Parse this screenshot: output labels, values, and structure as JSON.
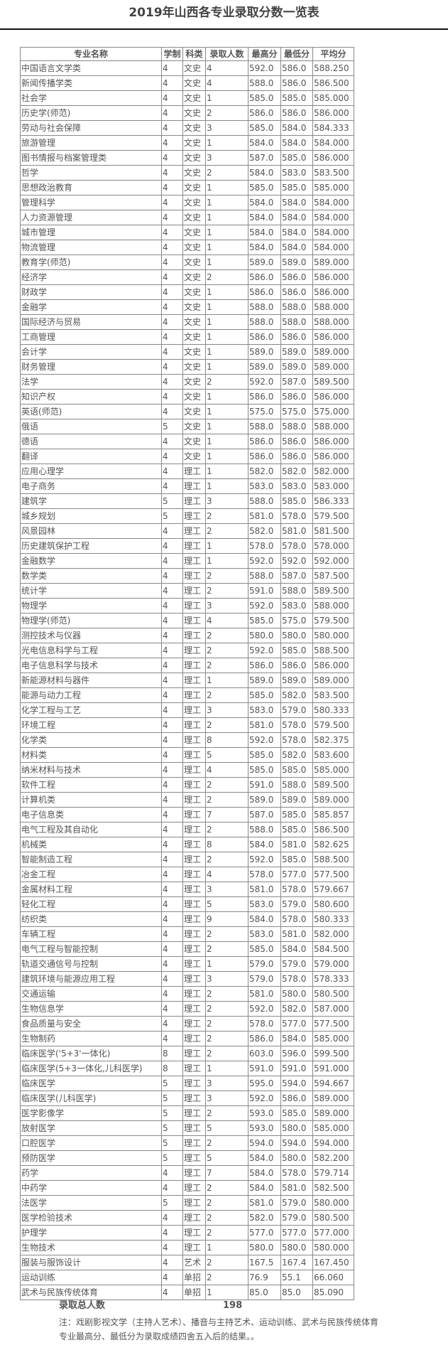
{
  "title": "2019年山西各专业录取分数一览表",
  "table": {
    "headers": [
      "专业名称",
      "学制",
      "科类",
      "录取人数",
      "最高分",
      "最低分",
      "平均分"
    ],
    "rows": [
      [
        "中国语言文学类",
        "4",
        "文史",
        "4",
        "592.0",
        "586.0",
        "588.250"
      ],
      [
        "新闻传播学类",
        "4",
        "文史",
        "4",
        "588.0",
        "586.0",
        "586.500"
      ],
      [
        "社会学",
        "4",
        "文史",
        "1",
        "585.0",
        "585.0",
        "585.000"
      ],
      [
        "历史学(师范)",
        "4",
        "文史",
        "2",
        "586.0",
        "586.0",
        "586.000"
      ],
      [
        "劳动与社会保障",
        "4",
        "文史",
        "3",
        "585.0",
        "584.0",
        "584.333"
      ],
      [
        "旅游管理",
        "4",
        "文史",
        "1",
        "584.0",
        "584.0",
        "584.000"
      ],
      [
        "图书情报与档案管理类",
        "4",
        "文史",
        "3",
        "587.0",
        "585.0",
        "586.000"
      ],
      [
        "哲学",
        "4",
        "文史",
        "2",
        "584.0",
        "583.0",
        "583.500"
      ],
      [
        "思想政治教育",
        "4",
        "文史",
        "1",
        "585.0",
        "585.0",
        "585.000"
      ],
      [
        "管理科学",
        "4",
        "文史",
        "1",
        "584.0",
        "584.0",
        "584.000"
      ],
      [
        "人力资源管理",
        "4",
        "文史",
        "1",
        "584.0",
        "584.0",
        "584.000"
      ],
      [
        "城市管理",
        "4",
        "文史",
        "1",
        "584.0",
        "584.0",
        "584.000"
      ],
      [
        "物流管理",
        "4",
        "文史",
        "1",
        "584.0",
        "584.0",
        "584.000"
      ],
      [
        "教育学(师范)",
        "4",
        "文史",
        "1",
        "589.0",
        "589.0",
        "589.000"
      ],
      [
        "经济学",
        "4",
        "文史",
        "2",
        "586.0",
        "586.0",
        "586.000"
      ],
      [
        "财政学",
        "4",
        "文史",
        "1",
        "586.0",
        "586.0",
        "586.000"
      ],
      [
        "金融学",
        "4",
        "文史",
        "1",
        "588.0",
        "588.0",
        "588.000"
      ],
      [
        "国际经济与贸易",
        "4",
        "文史",
        "1",
        "588.0",
        "588.0",
        "588.000"
      ],
      [
        "工商管理",
        "4",
        "文史",
        "1",
        "586.0",
        "586.0",
        "586.000"
      ],
      [
        "会计学",
        "4",
        "文史",
        "1",
        "589.0",
        "589.0",
        "589.000"
      ],
      [
        "财务管理",
        "4",
        "文史",
        "1",
        "589.0",
        "589.0",
        "589.000"
      ],
      [
        "法学",
        "4",
        "文史",
        "2",
        "592.0",
        "587.0",
        "589.500"
      ],
      [
        "知识产权",
        "4",
        "文史",
        "1",
        "586.0",
        "586.0",
        "586.000"
      ],
      [
        "英语(师范)",
        "4",
        "文史",
        "1",
        "575.0",
        "575.0",
        "575.000"
      ],
      [
        "俄语",
        "5",
        "文史",
        "1",
        "588.0",
        "588.0",
        "588.000"
      ],
      [
        "德语",
        "4",
        "文史",
        "1",
        "586.0",
        "586.0",
        "586.000"
      ],
      [
        "翻译",
        "4",
        "文史",
        "1",
        "586.0",
        "586.0",
        "586.000"
      ],
      [
        "应用心理学",
        "4",
        "理工",
        "1",
        "582.0",
        "582.0",
        "582.000"
      ],
      [
        "电子商务",
        "4",
        "理工",
        "1",
        "583.0",
        "583.0",
        "583.000"
      ],
      [
        "建筑学",
        "5",
        "理工",
        "3",
        "588.0",
        "585.0",
        "586.333"
      ],
      [
        "城乡规划",
        "5",
        "理工",
        "2",
        "581.0",
        "578.0",
        "579.500"
      ],
      [
        "风景园林",
        "4",
        "理工",
        "2",
        "582.0",
        "581.0",
        "581.500"
      ],
      [
        "历史建筑保护工程",
        "4",
        "理工",
        "1",
        "578.0",
        "578.0",
        "578.000"
      ],
      [
        "金融数学",
        "4",
        "理工",
        "1",
        "592.0",
        "592.0",
        "592.000"
      ],
      [
        "数学类",
        "4",
        "理工",
        "2",
        "588.0",
        "587.0",
        "587.500"
      ],
      [
        "统计学",
        "4",
        "理工",
        "2",
        "591.0",
        "588.0",
        "589.500"
      ],
      [
        "物理学",
        "4",
        "理工",
        "3",
        "592.0",
        "583.0",
        "588.000"
      ],
      [
        "物理学(师范)",
        "4",
        "理工",
        "4",
        "585.0",
        "575.0",
        "579.500"
      ],
      [
        "测控技术与仪器",
        "4",
        "理工",
        "2",
        "580.0",
        "580.0",
        "580.000"
      ],
      [
        "光电信息科学与工程",
        "4",
        "理工",
        "2",
        "592.0",
        "585.0",
        "588.500"
      ],
      [
        "电子信息科学与技术",
        "4",
        "理工",
        "2",
        "586.0",
        "586.0",
        "586.000"
      ],
      [
        "新能源材料与器件",
        "4",
        "理工",
        "1",
        "589.0",
        "589.0",
        "589.000"
      ],
      [
        "能源与动力工程",
        "4",
        "理工",
        "2",
        "585.0",
        "582.0",
        "583.500"
      ],
      [
        "化学工程与工艺",
        "4",
        "理工",
        "3",
        "583.0",
        "579.0",
        "580.333"
      ],
      [
        "环境工程",
        "4",
        "理工",
        "2",
        "581.0",
        "578.0",
        "579.500"
      ],
      [
        "化学类",
        "4",
        "理工",
        "8",
        "592.0",
        "578.0",
        "582.375"
      ],
      [
        "材料类",
        "4",
        "理工",
        "5",
        "585.0",
        "582.0",
        "583.600"
      ],
      [
        "纳米材料与技术",
        "4",
        "理工",
        "4",
        "585.0",
        "585.0",
        "585.000"
      ],
      [
        "软件工程",
        "4",
        "理工",
        "2",
        "591.0",
        "588.0",
        "589.500"
      ],
      [
        "计算机类",
        "4",
        "理工",
        "2",
        "589.0",
        "589.0",
        "589.000"
      ],
      [
        "电子信息类",
        "4",
        "理工",
        "7",
        "587.0",
        "585.0",
        "585.857"
      ],
      [
        "电气工程及其自动化",
        "4",
        "理工",
        "2",
        "588.0",
        "585.0",
        "586.500"
      ],
      [
        "机械类",
        "4",
        "理工",
        "8",
        "584.0",
        "581.0",
        "582.625"
      ],
      [
        "智能制造工程",
        "4",
        "理工",
        "2",
        "592.0",
        "585.0",
        "588.500"
      ],
      [
        "冶金工程",
        "4",
        "理工",
        "4",
        "578.0",
        "577.0",
        "577.500"
      ],
      [
        "金属材料工程",
        "4",
        "理工",
        "3",
        "581.0",
        "578.0",
        "579.667"
      ],
      [
        "轻化工程",
        "4",
        "理工",
        "5",
        "583.0",
        "579.0",
        "580.600"
      ],
      [
        "纺织类",
        "4",
        "理工",
        "9",
        "584.0",
        "578.0",
        "580.333"
      ],
      [
        "车辆工程",
        "4",
        "理工",
        "2",
        "583.0",
        "581.0",
        "582.000"
      ],
      [
        "电气工程与智能控制",
        "4",
        "理工",
        "2",
        "585.0",
        "584.0",
        "584.500"
      ],
      [
        "轨道交通信号与控制",
        "4",
        "理工",
        "1",
        "579.0",
        "579.0",
        "579.000"
      ],
      [
        "建筑环境与能源应用工程",
        "4",
        "理工",
        "3",
        "579.0",
        "578.0",
        "578.333"
      ],
      [
        "交通运输",
        "4",
        "理工",
        "2",
        "581.0",
        "580.0",
        "580.500"
      ],
      [
        "生物信息学",
        "4",
        "理工",
        "2",
        "592.0",
        "582.0",
        "587.000"
      ],
      [
        "食品质量与安全",
        "4",
        "理工",
        "2",
        "578.0",
        "577.0",
        "577.500"
      ],
      [
        "生物制药",
        "4",
        "理工",
        "2",
        "586.0",
        "584.0",
        "585.000"
      ],
      [
        "临床医学('5+3'一体化)",
        "8",
        "理工",
        "2",
        "603.0",
        "596.0",
        "599.500"
      ],
      [
        "临床医学(5+3一体化,儿科医学)",
        "8",
        "理工",
        "1",
        "591.0",
        "591.0",
        "591.000"
      ],
      [
        "临床医学",
        "5",
        "理工",
        "3",
        "595.0",
        "594.0",
        "594.667"
      ],
      [
        "临床医学(儿科医学)",
        "5",
        "理工",
        "3",
        "592.0",
        "586.0",
        "589.000"
      ],
      [
        "医学影像学",
        "5",
        "理工",
        "2",
        "593.0",
        "585.0",
        "589.000"
      ],
      [
        "放射医学",
        "5",
        "理工",
        "5",
        "593.0",
        "580.0",
        "585.000"
      ],
      [
        "口腔医学",
        "5",
        "理工",
        "2",
        "594.0",
        "594.0",
        "594.000"
      ],
      [
        "预防医学",
        "5",
        "理工",
        "5",
        "584.0",
        "580.0",
        "582.200"
      ],
      [
        "药学",
        "4",
        "理工",
        "7",
        "584.0",
        "578.0",
        "579.714"
      ],
      [
        "中药学",
        "4",
        "理工",
        "2",
        "584.0",
        "581.0",
        "582.500"
      ],
      [
        "法医学",
        "5",
        "理工",
        "2",
        "581.0",
        "579.0",
        "580.000"
      ],
      [
        "医学检验技术",
        "4",
        "理工",
        "2",
        "582.0",
        "579.0",
        "580.500"
      ],
      [
        "护理学",
        "4",
        "理工",
        "2",
        "577.0",
        "577.0",
        "577.000"
      ],
      [
        "生物技术",
        "4",
        "理工",
        "1",
        "580.0",
        "580.0",
        "580.000"
      ],
      [
        "服装与服饰设计",
        "4",
        "艺术",
        "2",
        "167.5",
        "167.4",
        "167.450"
      ],
      [
        "运动训练",
        "4",
        "单招",
        "2",
        "76.9",
        "55.1",
        "66.060"
      ],
      [
        "武术与民族传统体育",
        "4",
        "单招",
        "1",
        "85.0",
        "85.0",
        "85.090"
      ]
    ]
  },
  "summary": {
    "label": "录取总人数",
    "value": "198"
  },
  "note": "注：戏剧影视文学（主持人艺术）、播音与主持艺术、运动训练、武术与民族传统体育专业最高分、最低分为录取成绩四舍五入后的结果。。"
}
